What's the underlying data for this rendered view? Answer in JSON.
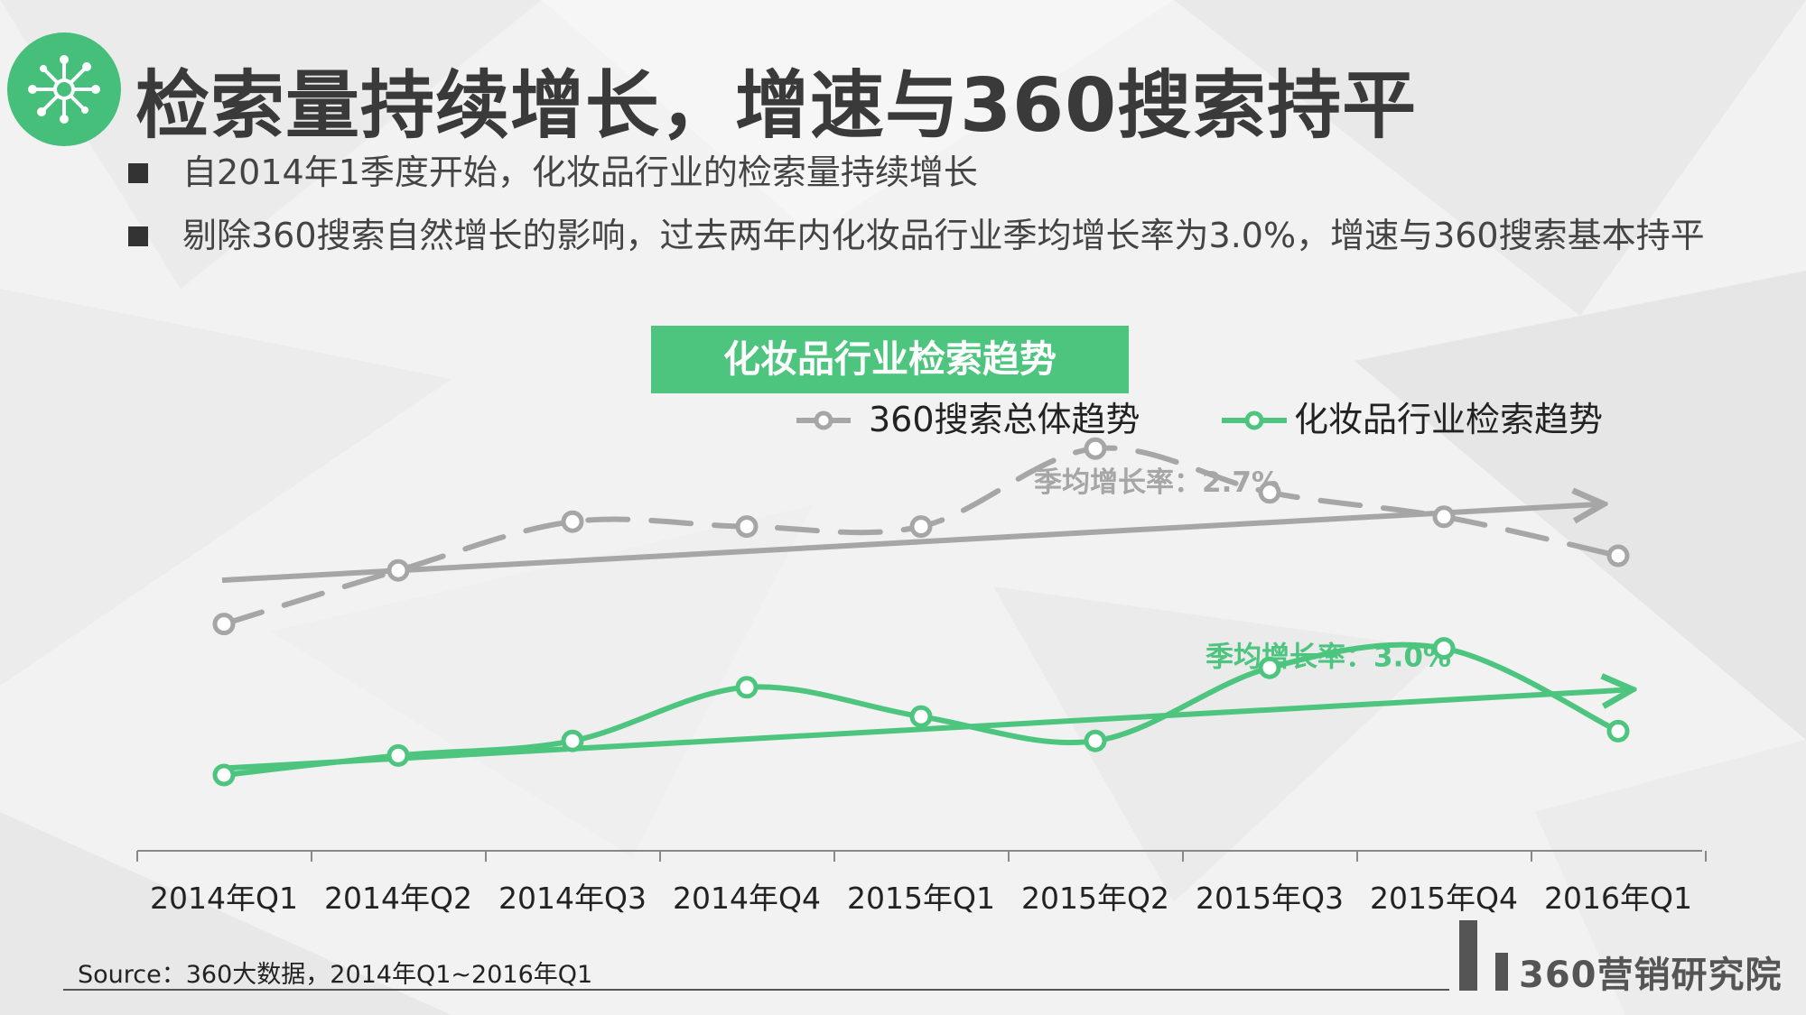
{
  "header": {
    "title": "检索量持续增长，增速与360搜索持平",
    "icon": "network-hub-icon"
  },
  "bullets": [
    "自2014年1季度开始，化妆品行业的检索量持续增长",
    "剔除360搜索自然增长的影响，过去两年内化妆品行业季均增长率为3.0%，增速与360搜索基本持平"
  ],
  "colors": {
    "accent": "#4dc57f",
    "gray_series": "#a6a6a6",
    "green_series": "#4dc57f"
  },
  "chart_data": {
    "type": "line",
    "title": "化妆品行业检索趋势",
    "categories": [
      "2014年Q1",
      "2014年Q2",
      "2014年Q3",
      "2014年Q4",
      "2015年Q1",
      "2015年Q2",
      "2015年Q3",
      "2015年Q4",
      "2016年Q1"
    ],
    "series": [
      {
        "name": "360搜索总体趋势",
        "style": "dashed",
        "color": "#a6a6a6",
        "values": [
          46,
          57,
          67,
          66,
          66,
          82,
          73,
          68,
          60
        ]
      },
      {
        "name": "化妆品行业检索趋势",
        "style": "solid",
        "color": "#4dc57f",
        "values": [
          15,
          19,
          22,
          33,
          27,
          22,
          37,
          41,
          24
        ]
      }
    ],
    "annotations": [
      {
        "text": "季均增长率：2.7%",
        "series": "360搜索总体趋势",
        "type": "trend-arrow"
      },
      {
        "text": "季均增长率：3.0%",
        "series": "化妆品行业检索趋势",
        "type": "trend-arrow"
      }
    ],
    "ylim": [
      0,
      100
    ],
    "legend": "top",
    "grid": false,
    "xlabel": "",
    "ylabel": ""
  },
  "source": "Source：360大数据，2014年Q1~2016年Q1",
  "brand": "360营销研究院"
}
